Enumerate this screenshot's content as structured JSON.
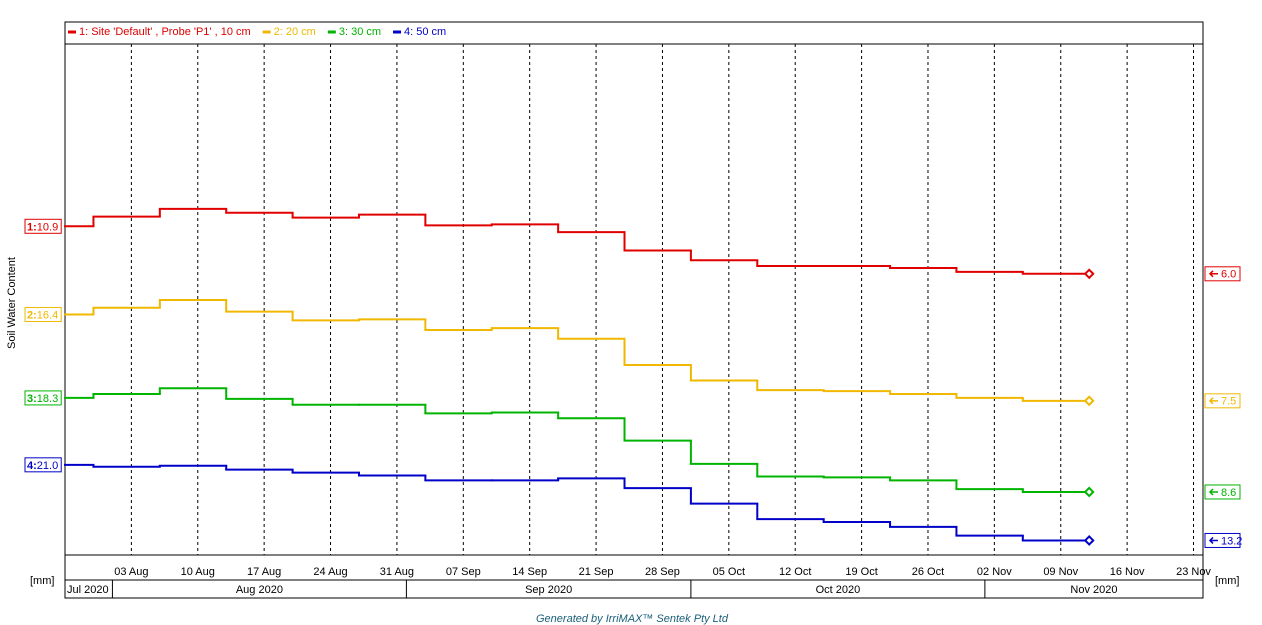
{
  "chart_data": {
    "type": "line",
    "step": "pre",
    "grid": true,
    "legend": "top",
    "y_label": "Soil Water Content",
    "unit_left": "[mm]",
    "unit_right": "[mm]",
    "footer": "Generated by IrriMAX™ Sentek Pty Ltd",
    "xlim": [
      "2020-07-27",
      "2020-11-24"
    ],
    "x": [
      "2020-07-30",
      "2020-08-06",
      "2020-08-13",
      "2020-08-20",
      "2020-08-27",
      "2020-09-03",
      "2020-09-10",
      "2020-09-17",
      "2020-09-24",
      "2020-10-01",
      "2020-10-08",
      "2020-10-15",
      "2020-10-22",
      "2020-10-29",
      "2020-11-05",
      "2020-11-12"
    ],
    "xticks": [
      {
        "value": "2020-08-03",
        "label": "03 Aug"
      },
      {
        "value": "2020-08-10",
        "label": "10 Aug"
      },
      {
        "value": "2020-08-17",
        "label": "17 Aug"
      },
      {
        "value": "2020-08-24",
        "label": "24 Aug"
      },
      {
        "value": "2020-08-31",
        "label": "31 Aug"
      },
      {
        "value": "2020-09-07",
        "label": "07 Sep"
      },
      {
        "value": "2020-09-14",
        "label": "14 Sep"
      },
      {
        "value": "2020-09-21",
        "label": "21 Sep"
      },
      {
        "value": "2020-09-28",
        "label": "28 Sep"
      },
      {
        "value": "2020-10-05",
        "label": "05 Oct"
      },
      {
        "value": "2020-10-12",
        "label": "12 Oct"
      },
      {
        "value": "2020-10-19",
        "label": "19 Oct"
      },
      {
        "value": "2020-10-26",
        "label": "26 Oct"
      },
      {
        "value": "2020-11-02",
        "label": "02 Nov"
      },
      {
        "value": "2020-11-09",
        "label": "09 Nov"
      },
      {
        "value": "2020-11-16",
        "label": "16 Nov"
      },
      {
        "value": "2020-11-23",
        "label": "23 Nov"
      }
    ],
    "months": [
      {
        "value": "2020-07-01",
        "label": "Jul 2020"
      },
      {
        "value": "2020-08-01",
        "label": "Aug 2020"
      },
      {
        "value": "2020-09-01",
        "label": "Sep 2020"
      },
      {
        "value": "2020-10-01",
        "label": "Oct 2020"
      },
      {
        "value": "2020-11-01",
        "label": "Nov 2020"
      }
    ],
    "series": [
      {
        "name": "1: Site 'Default' , Probe 'P1' , 10 cm",
        "tag": "1:",
        "color": "#e00000",
        "ylim": [
          -23.0,
          29.7
        ],
        "values": [
          10.9,
          11.9,
          12.7,
          12.3,
          11.8,
          12.1,
          11.0,
          11.1,
          10.3,
          8.4,
          7.4,
          6.8,
          6.8,
          6.6,
          6.2,
          6.0
        ],
        "value_labels": [
          "10.9",
          null,
          null,
          null,
          null,
          null,
          null,
          null,
          null,
          null,
          null,
          null,
          null,
          null,
          null,
          "6.0"
        ]
      },
      {
        "name": "2: 20 cm",
        "tag": "2:",
        "color": "#f0b800",
        "ylim": [
          -8.4,
          44.3
        ],
        "values": [
          16.4,
          17.1,
          17.9,
          16.7,
          15.8,
          15.9,
          14.8,
          15.0,
          13.9,
          11.2,
          9.6,
          8.6,
          8.5,
          8.2,
          7.8,
          7.5
        ],
        "value_labels": [
          "16.4",
          null,
          null,
          null,
          null,
          null,
          null,
          null,
          null,
          null,
          null,
          null,
          null,
          null,
          null,
          "7.5"
        ]
      },
      {
        "name": "3: 30 cm",
        "tag": "3:",
        "color": "#00b400",
        "ylim": [
          2.1,
          54.8
        ],
        "values": [
          18.3,
          18.7,
          19.3,
          18.2,
          17.6,
          17.6,
          16.7,
          16.8,
          16.2,
          13.9,
          11.5,
          10.2,
          10.1,
          9.8,
          8.9,
          8.6
        ],
        "value_labels": [
          "18.3",
          null,
          null,
          null,
          null,
          null,
          null,
          null,
          null,
          null,
          null,
          null,
          null,
          null,
          null,
          "8.6"
        ]
      },
      {
        "name": "4: 50 cm",
        "tag": "4:",
        "color": "#0000c8",
        "ylim": [
          11.7,
          64.4
        ],
        "values": [
          21.0,
          20.8,
          20.9,
          20.5,
          20.2,
          19.9,
          19.4,
          19.4,
          19.6,
          18.6,
          17.0,
          15.4,
          15.1,
          14.6,
          13.7,
          13.2
        ],
        "value_labels": [
          "21.0",
          null,
          null,
          null,
          null,
          null,
          null,
          null,
          null,
          null,
          null,
          null,
          null,
          null,
          null,
          "13.2"
        ]
      }
    ]
  }
}
